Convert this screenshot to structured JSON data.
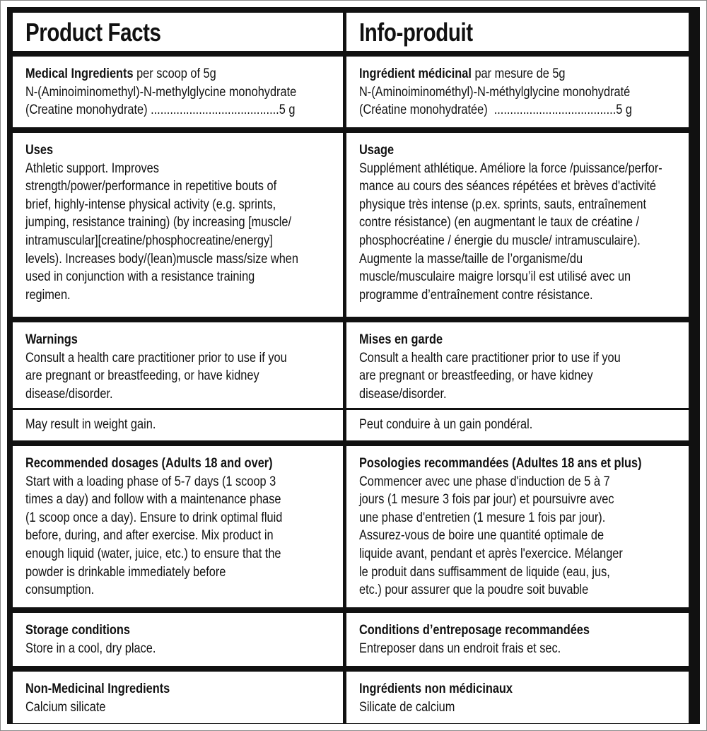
{
  "english": {
    "title": "Product Facts",
    "ingredients": {
      "heading": "Medical Ingredients",
      "heading_suffix": " per scoop of 5g",
      "lines": [
        "N-(Aminoiminomethyl)-N-methylglycine monohydrate",
        "(Creatine monohydrate) ........................................5 g"
      ]
    },
    "uses": {
      "heading": "Uses",
      "lines": [
        "Athletic support. Improves",
        "strength/power/performance in repetitive bouts of",
        "brief, highly-intense physical activity (e.g. sprints,",
        "jumping, resistance training) (by increasing [muscle/",
        "intramuscular][creatine/phosphocreatine/energy]",
        "levels). Increases body/(lean)muscle mass/size when",
        "used in conjunction with a resistance training",
        "regimen."
      ]
    },
    "warnings": {
      "heading": "Warnings",
      "lines": [
        "Consult a health care practitioner prior to use if you",
        "are pregnant or breastfeeding, or have kidney",
        "disease/disorder."
      ]
    },
    "weight": {
      "lines": [
        "May result in weight gain."
      ]
    },
    "dosages": {
      "heading": "Recommended dosages (Adults 18 and over)",
      "lines": [
        "Start with a loading phase of 5-7 days (1 scoop 3",
        "times a day) and follow with a maintenance phase",
        "(1 scoop once a day). Ensure to drink optimal fluid",
        "before, during, and after exercise. Mix product in",
        "enough liquid (water, juice, etc.) to ensure that the",
        "powder is drinkable immediately before",
        "consumption."
      ]
    },
    "storage": {
      "heading": "Storage conditions",
      "lines": [
        "Store in a cool, dry place."
      ]
    },
    "nonmed": {
      "heading": "Non-Medicinal Ingredients",
      "lines": [
        "Calcium silicate"
      ]
    }
  },
  "french": {
    "title": "Info-produit",
    "ingredients": {
      "heading": "Ingrédient médicinal",
      "heading_suffix": " par mesure de 5g",
      "lines": [
        "N-(Aminoiminométhyl)-N-méthylglycine monohydraté",
        "(Créatine monohydratée)  ......................................5 g"
      ]
    },
    "uses": {
      "heading": "Usage",
      "lines": [
        "Supplément athlétique. Améliore la force /puissance/perfor-",
        "mance au cours des séances répétées et brèves d'activité",
        "physique très intense (p.ex. sprints, sauts, entraînement",
        "contre résistance) (en augmentant le taux de créatine /",
        "phosphocréatine / énergie du muscle/ intramusculaire).",
        "Augmente la masse/taille de l’organisme/du",
        "muscle/musculaire maigre lorsqu’il est utilisé avec un",
        "programme d’entraînement contre résistance."
      ]
    },
    "warnings": {
      "heading": "Mises en garde",
      "lines": [
        "Consult a health care practitioner prior to use if you",
        "are pregnant or breastfeeding, or have kidney",
        "disease/disorder."
      ]
    },
    "weight": {
      "lines": [
        "Peut conduire à un gain pondéral."
      ]
    },
    "dosages": {
      "heading": "Posologies recommandées (Adultes 18 ans et plus)",
      "lines": [
        "Commencer avec une phase d'induction de 5 à 7",
        "jours (1 mesure 3 fois par jour) et poursuivre avec",
        "une phase d'entretien (1 mesure 1 fois par jour).",
        "Assurez-vous de boire une quantité optimale de",
        "liquide avant, pendant et après l'exercice. Mélanger",
        "le produit dans suffisamment de liquide (eau, jus,",
        "etc.) pour assurer que la poudre soit buvable"
      ]
    },
    "storage": {
      "heading": "Conditions d’entreposage recommandées",
      "lines": [
        "Entreposer dans un endroit frais et sec."
      ]
    },
    "nonmed": {
      "heading": "Ingrédients non médicinaux",
      "lines": [
        "Silicate de calcium"
      ]
    }
  }
}
